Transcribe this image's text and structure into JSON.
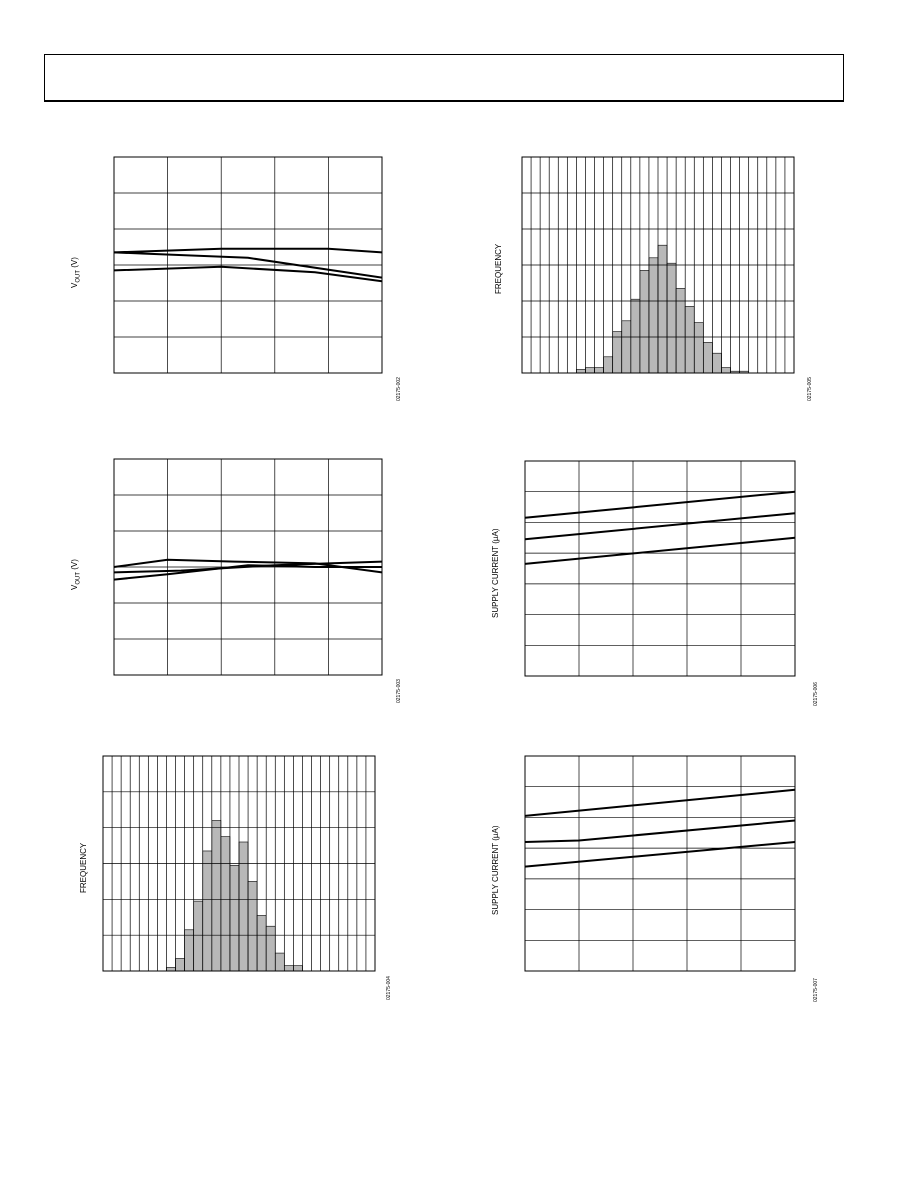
{
  "page": {
    "header_text": ""
  },
  "charts": [
    {
      "id": "c1",
      "figure_id": "02175-002",
      "y_label_main": "V",
      "y_label_sub": "OUT",
      "y_label_tail": " (V)"
    },
    {
      "id": "c2",
      "figure_id": "02175-005",
      "y_label_main": "FREQUENCY",
      "y_label_sub": "",
      "y_label_tail": ""
    },
    {
      "id": "c3",
      "figure_id": "02175-003",
      "y_label_main": "V",
      "y_label_sub": "OUT",
      "y_label_tail": " (V)"
    },
    {
      "id": "c4",
      "figure_id": "02175-006",
      "y_label_main": "SUPPLY CURRENT (µA)",
      "y_label_sub": "",
      "y_label_tail": ""
    },
    {
      "id": "c5",
      "figure_id": "02175-004",
      "y_label_main": "FREQUENCY",
      "y_label_sub": "",
      "y_label_tail": ""
    },
    {
      "id": "c6",
      "figure_id": "02175-007",
      "y_label_main": "SUPPLY CURRENT (µA)",
      "y_label_sub": "",
      "y_label_tail": ""
    }
  ],
  "chart_data": [
    {
      "type": "line",
      "grid": true,
      "x_divisions": 5,
      "y_divisions": 6,
      "xlim": [
        0,
        1
      ],
      "ylim": [
        0,
        6
      ],
      "series": [
        {
          "values": [
            [
              0,
              3.35
            ],
            [
              0.4,
              3.45
            ],
            [
              0.8,
              3.45
            ],
            [
              1,
              3.35
            ]
          ]
        },
        {
          "values": [
            [
              0,
              3.35
            ],
            [
              0.5,
              3.2
            ],
            [
              1,
              2.65
            ]
          ]
        },
        {
          "values": [
            [
              0,
              2.85
            ],
            [
              0.4,
              2.95
            ],
            [
              0.75,
              2.8
            ],
            [
              1,
              2.55
            ]
          ]
        }
      ]
    },
    {
      "type": "bar",
      "grid": true,
      "x_divisions": 30,
      "y_divisions": 6,
      "ylim": [
        0,
        60
      ],
      "values": [
        0,
        0,
        0,
        0,
        0,
        0,
        1,
        1.5,
        1.5,
        4.5,
        11.5,
        14.5,
        20.5,
        28.5,
        32,
        35.5,
        30.5,
        23.5,
        18.5,
        14,
        8.5,
        5.5,
        1.5,
        0.5,
        0.5,
        0,
        0,
        0,
        0,
        0
      ]
    },
    {
      "type": "line",
      "grid": true,
      "x_divisions": 5,
      "y_divisions": 6,
      "xlim": [
        0,
        1
      ],
      "ylim": [
        0,
        6
      ],
      "series": [
        {
          "values": [
            [
              0,
              3.0
            ],
            [
              0.2,
              3.2
            ],
            [
              0.45,
              3.15
            ],
            [
              0.75,
              3.1
            ],
            [
              1,
              2.85
            ]
          ]
        },
        {
          "values": [
            [
              0,
              2.85
            ],
            [
              0.25,
              2.9
            ],
            [
              0.6,
              3.05
            ],
            [
              0.8,
              3.1
            ],
            [
              1,
              3.15
            ]
          ]
        },
        {
          "values": [
            [
              0,
              2.65
            ],
            [
              0.2,
              2.8
            ],
            [
              0.5,
              3.05
            ],
            [
              0.75,
              3.0
            ],
            [
              1,
              3.0
            ]
          ]
        }
      ]
    },
    {
      "type": "line",
      "grid": true,
      "x_divisions": 5,
      "y_divisions": 7,
      "xlim": [
        0,
        1
      ],
      "ylim": [
        0,
        7
      ],
      "series": [
        {
          "values": [
            [
              0,
              5.15
            ],
            [
              1,
              6.0
            ]
          ]
        },
        {
          "values": [
            [
              0,
              4.45
            ],
            [
              1,
              5.3
            ]
          ]
        },
        {
          "values": [
            [
              0,
              3.65
            ],
            [
              1,
              4.5
            ]
          ]
        }
      ]
    },
    {
      "type": "bar",
      "grid": true,
      "x_divisions": 30,
      "y_divisions": 6,
      "ylim": [
        0,
        60
      ],
      "values": [
        0,
        0,
        0,
        0,
        0,
        0,
        0,
        1,
        3.5,
        11.5,
        19.5,
        33.5,
        42,
        37.5,
        29.5,
        36,
        25,
        15.5,
        12.5,
        5,
        1.5,
        1.5,
        0,
        0,
        0,
        0,
        0,
        0,
        0,
        0
      ]
    },
    {
      "type": "line",
      "grid": true,
      "x_divisions": 5,
      "y_divisions": 7,
      "xlim": [
        0,
        1
      ],
      "ylim": [
        0,
        7
      ],
      "series": [
        {
          "values": [
            [
              0,
              5.05
            ],
            [
              1,
              5.9
            ]
          ]
        },
        {
          "values": [
            [
              0,
              4.2
            ],
            [
              0.2,
              4.25
            ],
            [
              1,
              4.9
            ]
          ]
        },
        {
          "values": [
            [
              0,
              3.4
            ],
            [
              1,
              4.2
            ]
          ]
        }
      ]
    }
  ]
}
